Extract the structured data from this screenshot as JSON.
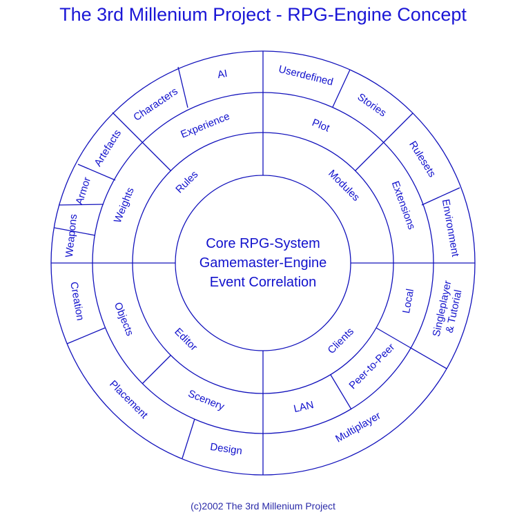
{
  "title": "The 3rd Millenium Project - RPG-Engine Concept",
  "core": [
    "Core RPG-System",
    "Gamemaster-Engine",
    "Event Correlation"
  ],
  "ring_inner": [
    "Rules",
    "Modules",
    "Clients",
    "Editor"
  ],
  "ring_middle": [
    "Experience",
    "Plot",
    "Extensions",
    "Local",
    "Peer-to-Peer",
    "LAN",
    "Scenery",
    "Objects",
    "Weights"
  ],
  "ring_outer": [
    "AI",
    "Userdefined",
    "Stories",
    "Rulesets",
    "Environment",
    "Singleplayer",
    "& Tutorial",
    "Multiplayer",
    "Design",
    "Placement",
    "Creation",
    "Weapons",
    "Armor",
    "Artefacts",
    "Characters"
  ],
  "footer": "(c)2002 The 3rd Millenium Project",
  "colors": {
    "primary": "#1a16d6",
    "lines": "#1010bb"
  }
}
